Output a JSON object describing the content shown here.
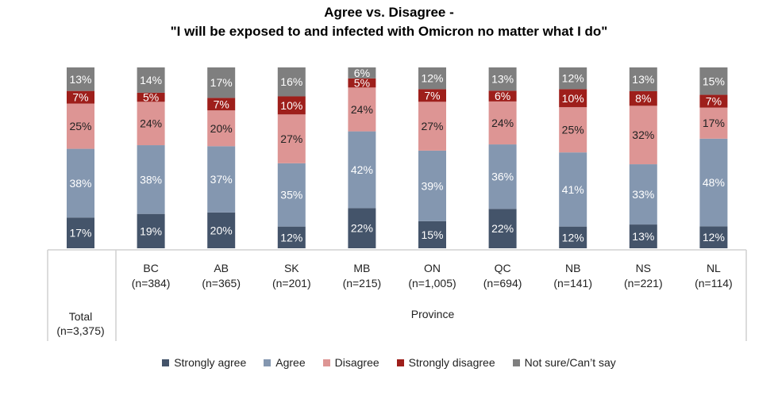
{
  "chart_data": {
    "type": "bar",
    "stacked": true,
    "title_line1": "Agree vs. Disagree -",
    "title_line2": "\"I will be exposed to and infected with Omicron no matter what I do\"",
    "group_label": "Province",
    "categories": [
      {
        "name": "Total",
        "n": "(n=3,375)"
      },
      {
        "name": "BC",
        "n": "(n=384)"
      },
      {
        "name": "AB",
        "n": "(n=365)"
      },
      {
        "name": "SK",
        "n": "(n=201)"
      },
      {
        "name": "MB",
        "n": "(n=215)"
      },
      {
        "name": "ON",
        "n": "(n=1,005)"
      },
      {
        "name": "QC",
        "n": "(n=694)"
      },
      {
        "name": "NB",
        "n": "(n=141)"
      },
      {
        "name": "NS",
        "n": "(n=221)"
      },
      {
        "name": "NL",
        "n": "(n=114)"
      }
    ],
    "series": [
      {
        "name": "Strongly agree",
        "color": "#44546A",
        "label_color": "#ffffff",
        "values": [
          17,
          19,
          20,
          12,
          22,
          15,
          22,
          12,
          13,
          12
        ]
      },
      {
        "name": "Agree",
        "color": "#8497B0",
        "label_color": "#ffffff",
        "values": [
          38,
          38,
          37,
          35,
          42,
          39,
          36,
          41,
          33,
          48
        ]
      },
      {
        "name": "Disagree",
        "color": "#DD9594",
        "label_color": "#222222",
        "values": [
          25,
          24,
          20,
          27,
          24,
          27,
          24,
          25,
          32,
          17
        ]
      },
      {
        "name": "Strongly disagree",
        "color": "#9E1F1B",
        "label_color": "#ffffff",
        "values": [
          7,
          5,
          7,
          10,
          5,
          7,
          6,
          10,
          8,
          7
        ]
      },
      {
        "name": "Not sure/Can’t say",
        "color": "#7F7F7F",
        "label_color": "#ffffff",
        "values": [
          13,
          14,
          17,
          16,
          6,
          12,
          13,
          12,
          13,
          15
        ]
      }
    ],
    "value_suffix": "%",
    "legend_position": "bottom",
    "grid": false
  }
}
